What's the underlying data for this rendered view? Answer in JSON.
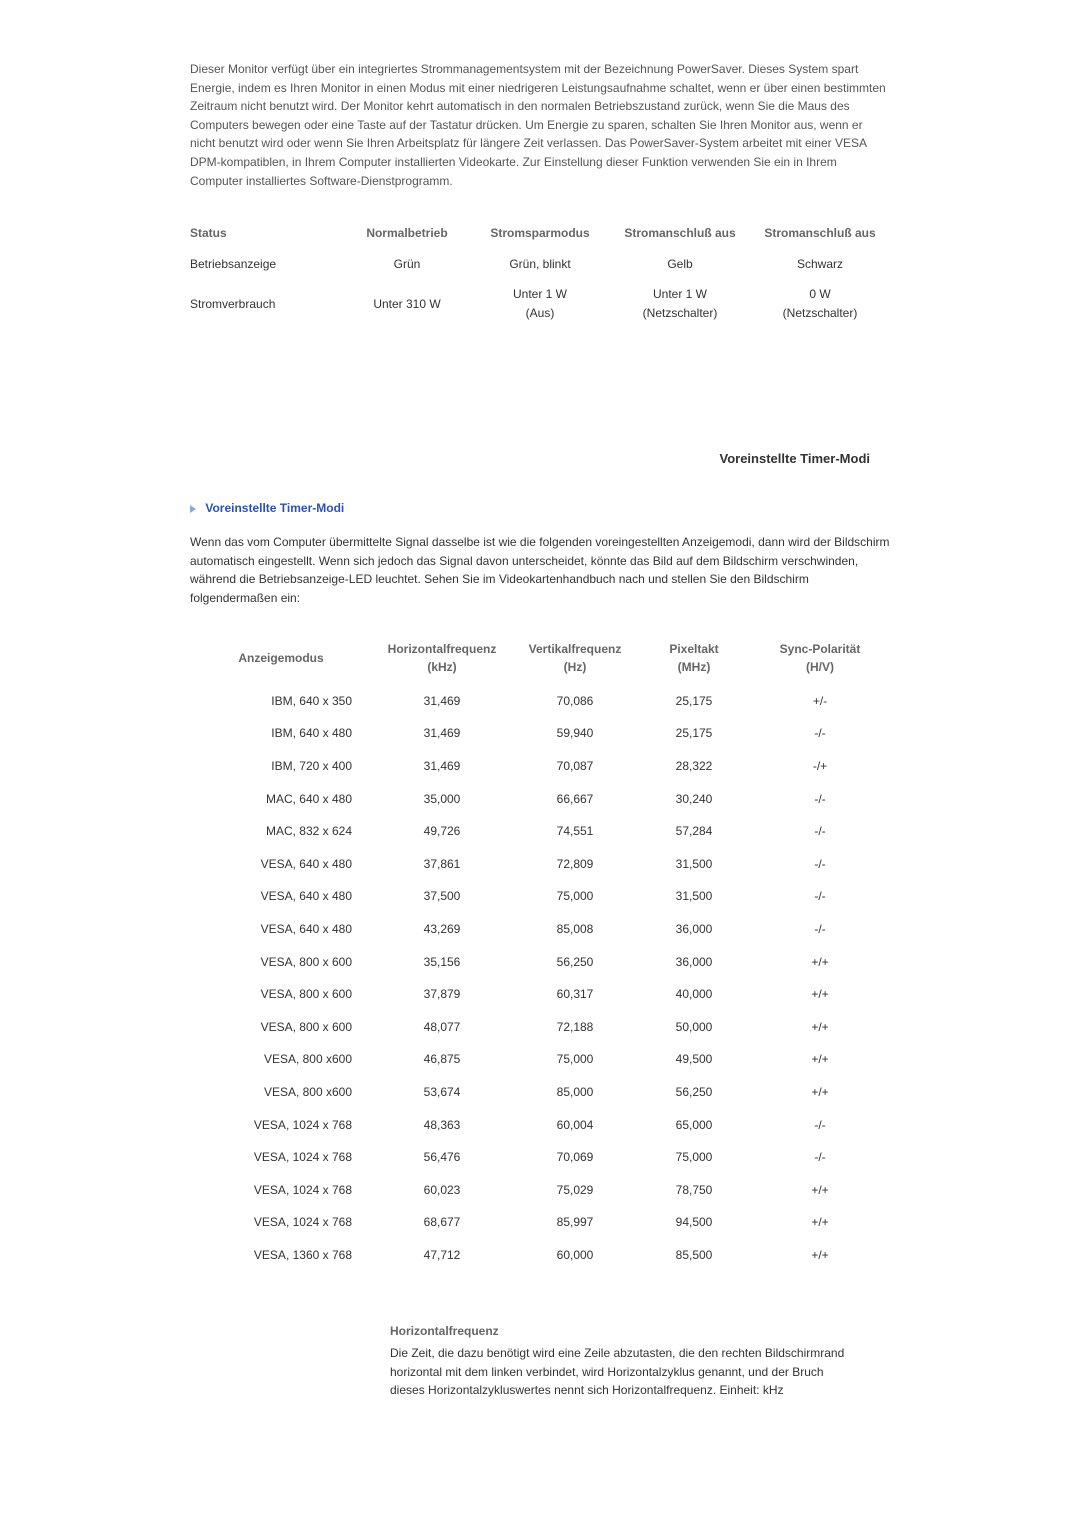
{
  "intro_text": "Dieser Monitor verfügt über ein integriertes Strommanagementsystem mit der Bezeichnung PowerSaver. Dieses System spart Energie, indem es Ihren Monitor in einen Modus mit einer niedrigeren Leistungsaufnahme schaltet, wenn er über einen bestimmten Zeitraum nicht benutzt wird. Der Monitor kehrt automatisch in den normalen Betriebszustand zurück, wenn Sie die Maus des Computers bewegen oder eine Taste auf der Tastatur drücken. Um Energie zu sparen, schalten Sie Ihren Monitor aus, wenn er nicht benutzt wird oder wenn Sie Ihren Arbeitsplatz für längere Zeit verlassen. Das PowerSaver-System arbeitet mit einer VESA DPM-kompatiblen, in Ihrem Computer installierten Videokarte. Zur Einstellung dieser Funktion verwenden Sie ein in Ihrem Computer installiertes Software-Dienstprogramm.",
  "status_table": {
    "headers": [
      "Status",
      "Normalbetrieb",
      "Stromsparmodus",
      "Stromanschluß aus",
      "Stromanschluß aus"
    ],
    "rows": [
      {
        "label": "Betriebsanzeige",
        "cells": [
          "Grün",
          "Grün, blinkt",
          "Gelb",
          "Schwarz"
        ]
      },
      {
        "label": "Stromverbrauch",
        "cells": [
          "Unter 310 W",
          "Unter 1 W (Aus)",
          "Unter 1 W (Netzschalter)",
          "0 W (Netzschalter)"
        ]
      }
    ],
    "col_widths": [
      "22%",
      "18%",
      "20%",
      "20%",
      "20%"
    ]
  },
  "section_label_right": "Voreinstellte Timer-Modi",
  "sub_heading": "Voreinstellte Timer-Modi",
  "timing_intro": "Wenn das vom Computer übermittelte Signal dasselbe ist wie die folgenden voreingestellten Anzeigemodi, dann wird der Bildschirm automatisch eingestellt. Wenn sich jedoch das Signal davon unterscheidet, könnte das Bild auf dem Bildschirm verschwinden, während die Betriebsanzeige-LED leuchtet. Sehen Sie im Videokartenhandbuch nach und stellen Sie den Bildschirm folgendermaßen ein:",
  "timing_table": {
    "headers": [
      "Anzeigemodus",
      "Horizontalfrequenz (kHz)",
      "Vertikalfrequenz (Hz)",
      "Pixeltakt (MHz)",
      "Sync-Polarität (H/V)"
    ],
    "col_widths": [
      "26%",
      "20%",
      "18%",
      "16%",
      "20%"
    ],
    "rows": [
      [
        "IBM, 640 x 350",
        "31,469",
        "70,086",
        "25,175",
        "+/-"
      ],
      [
        "IBM, 640 x 480",
        "31,469",
        "59,940",
        "25,175",
        "-/-"
      ],
      [
        "IBM, 720 x 400",
        "31,469",
        "70,087",
        "28,322",
        "-/+"
      ],
      [
        "MAC, 640 x 480",
        "35,000",
        "66,667",
        "30,240",
        "-/-"
      ],
      [
        "MAC, 832 x 624",
        "49,726",
        "74,551",
        "57,284",
        "-/-"
      ],
      [
        "VESA, 640 x 480",
        "37,861",
        "72,809",
        "31,500",
        "-/-"
      ],
      [
        "VESA, 640 x 480",
        "37,500",
        "75,000",
        "31,500",
        "-/-"
      ],
      [
        "VESA, 640 x 480",
        "43,269",
        "85,008",
        "36,000",
        "-/-"
      ],
      [
        "VESA, 800 x 600",
        "35,156",
        "56,250",
        "36,000",
        "+/+"
      ],
      [
        "VESA, 800 x 600",
        "37,879",
        "60,317",
        "40,000",
        "+/+"
      ],
      [
        "VESA, 800 x 600",
        "48,077",
        "72,188",
        "50,000",
        "+/+"
      ],
      [
        "VESA, 800 x600",
        "46,875",
        "75,000",
        "49,500",
        "+/+"
      ],
      [
        "VESA, 800 x600",
        "53,674",
        "85,000",
        "56,250",
        "+/+"
      ],
      [
        "VESA, 1024 x 768",
        "48,363",
        "60,004",
        "65,000",
        "-/-"
      ],
      [
        "VESA, 1024 x 768",
        "56,476",
        "70,069",
        "75,000",
        "-/-"
      ],
      [
        "VESA, 1024 x 768",
        "60,023",
        "75,029",
        "78,750",
        "+/+"
      ],
      [
        "VESA, 1024 x 768",
        "68,677",
        "85,997",
        "94,500",
        "+/+"
      ],
      [
        "VESA, 1360 x 768",
        "47,712",
        "60,000",
        "85,500",
        "+/+"
      ]
    ]
  },
  "definition": {
    "title": "Horizontalfrequenz",
    "body": "Die Zeit, die dazu benötigt wird eine Zeile abzutasten, die den rechten Bildschirmrand horizontal mit dem linken verbindet, wird Horizontalzyklus genannt, und der Bruch dieses Horizontalzykluswertes nennt sich Horizontalfrequenz. Einheit: kHz"
  },
  "colors": {
    "text": "#333333",
    "muted": "#555555",
    "header": "#666666",
    "link_blue": "#2a4fbf",
    "arrow_blue": "#88a8e0",
    "background": "#ffffff"
  }
}
